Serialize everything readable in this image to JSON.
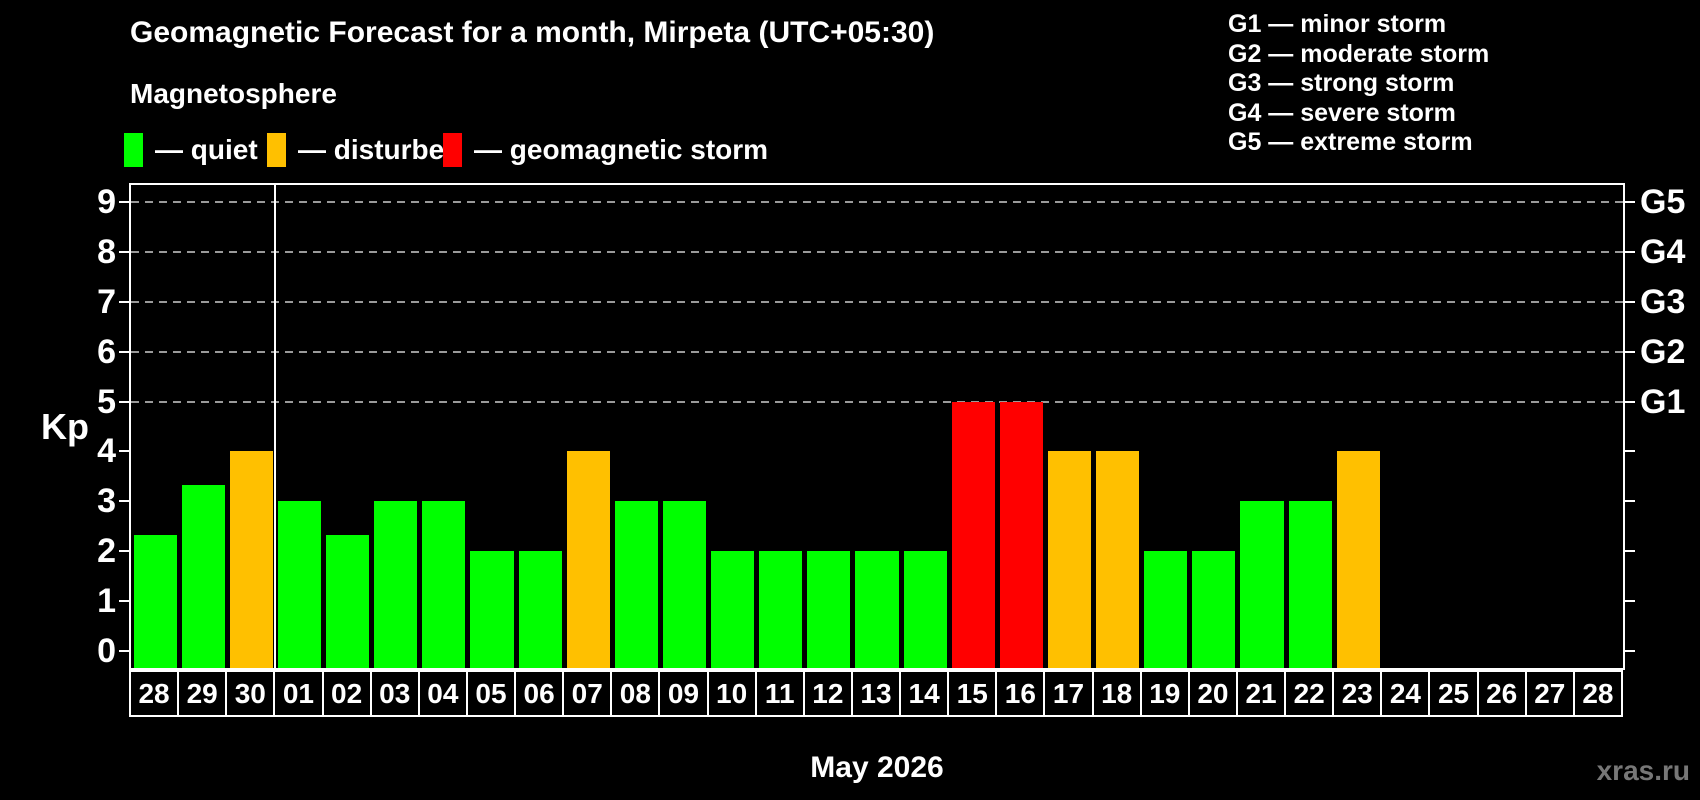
{
  "title": "Geomagnetic Forecast for a month, Mirpeta (UTC+05:30)",
  "subtitle": "Magnetosphere",
  "legend": {
    "items": [
      {
        "key": "quiet",
        "label": "— quiet",
        "color": "#00ff00"
      },
      {
        "key": "disturbed",
        "label": "— disturbed",
        "color": "#ffc000"
      },
      {
        "key": "storm",
        "label": "— geomagnetic storm",
        "color": "#ff0000"
      }
    ]
  },
  "g_legend": [
    "G1 — minor storm",
    "G2 — moderate storm",
    "G3 — strong storm",
    "G4 — severe storm",
    "G5 — extreme storm"
  ],
  "status_colors": {
    "quiet": "#00ff00",
    "disturbed": "#ffc000",
    "storm": "#ff0000"
  },
  "colors": {
    "background": "#000000",
    "text": "#ffffff",
    "axis": "#ffffff",
    "gridline": "#9a9a9a",
    "watermark_text": "#777777"
  },
  "watermark": "xras.ru",
  "chart_data": {
    "type": "bar",
    "title": "Geomagnetic Forecast for a month, Mirpeta (UTC+05:30)",
    "xlabel": "May 2026",
    "ylabel": "Kp",
    "ylim": [
      0,
      9
    ],
    "y_ticks": [
      0,
      1,
      2,
      3,
      4,
      5,
      6,
      7,
      8,
      9
    ],
    "gridlines_at": [
      5,
      6,
      7,
      8,
      9
    ],
    "grid": "dashed, only at storm levels G1–G5",
    "legend_position": "top",
    "right_axis_labels": [
      {
        "kp": 5,
        "label": "G1"
      },
      {
        "kp": 6,
        "label": "G2"
      },
      {
        "kp": 7,
        "label": "G3"
      },
      {
        "kp": 8,
        "label": "G4"
      },
      {
        "kp": 9,
        "label": "G5"
      }
    ],
    "categories": [
      "28",
      "29",
      "30",
      "01",
      "02",
      "03",
      "04",
      "05",
      "06",
      "07",
      "08",
      "09",
      "10",
      "11",
      "12",
      "13",
      "14",
      "15",
      "16",
      "17",
      "18",
      "19",
      "20",
      "21",
      "22",
      "23",
      "24",
      "25",
      "26",
      "27",
      "28"
    ],
    "month_separator_after_index": 2,
    "values": [
      2.33,
      3.33,
      4,
      3,
      2.33,
      3,
      3,
      2,
      2,
      4,
      3,
      3,
      2,
      2,
      2,
      2,
      2,
      5,
      5,
      4,
      4,
      2,
      2,
      3,
      3,
      4,
      0,
      0,
      0,
      0,
      0
    ],
    "statuses": [
      "quiet",
      "quiet",
      "disturbed",
      "quiet",
      "quiet",
      "quiet",
      "quiet",
      "quiet",
      "quiet",
      "disturbed",
      "quiet",
      "quiet",
      "quiet",
      "quiet",
      "quiet",
      "quiet",
      "quiet",
      "storm",
      "storm",
      "disturbed",
      "disturbed",
      "quiet",
      "quiet",
      "quiet",
      "quiet",
      "disturbed",
      "none",
      "none",
      "none",
      "none",
      "none"
    ]
  }
}
